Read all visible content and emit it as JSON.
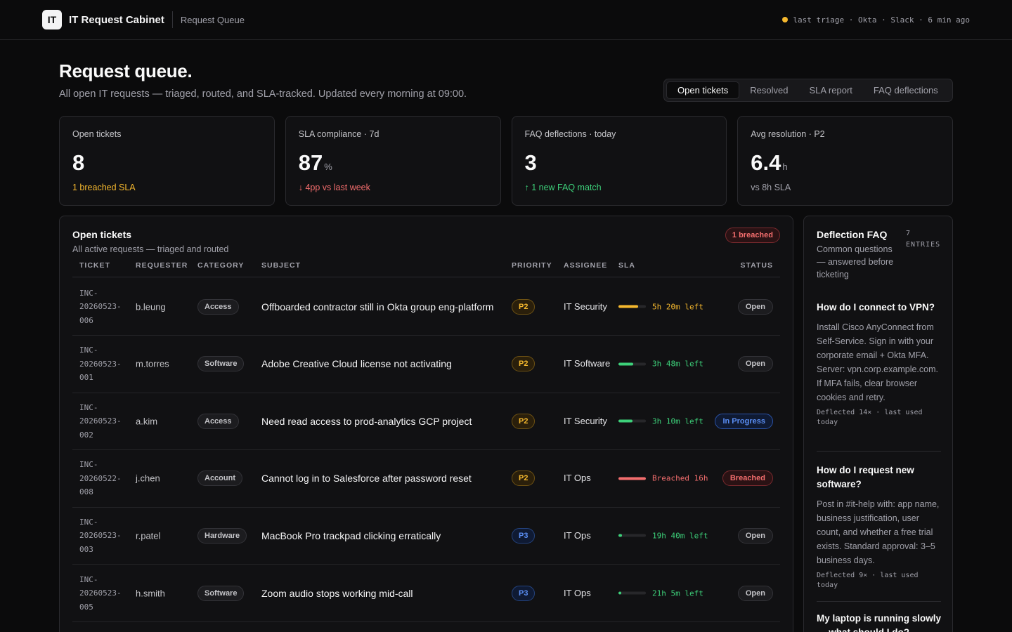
{
  "header": {
    "logo_text": "IT",
    "app_title": "IT Request Cabinet",
    "breadcrumb": "Request Queue",
    "triage_status": "last triage · Okta · Slack · 6 min ago"
  },
  "page": {
    "title": "Request queue.",
    "subtitle": "All open IT requests — triaged, routed, and SLA-tracked. Updated every morning at 09:00."
  },
  "tabs": [
    {
      "label": "Open tickets",
      "active": true
    },
    {
      "label": "Resolved",
      "active": false
    },
    {
      "label": "SLA report",
      "active": false
    },
    {
      "label": "FAQ deflections",
      "active": false
    }
  ],
  "stats": [
    {
      "label": "Open tickets",
      "value": "8",
      "unit": "",
      "note": "1 breached SLA"
    },
    {
      "label": "SLA compliance · 7d",
      "value": "87",
      "unit": "%",
      "note": "↓ 4pp vs last week"
    },
    {
      "label": "FAQ deflections · today",
      "value": "3",
      "unit": "",
      "note": "↑ 1 new FAQ match"
    },
    {
      "label": "Avg resolution · P2",
      "value": "6.4",
      "unit": "h",
      "note": "vs 8h SLA"
    }
  ],
  "colors": {
    "amber": "#f5b82e",
    "red": "#f26d6d",
    "green": "#3dd17a",
    "blue": "#5b8ff5"
  },
  "tickets_panel": {
    "title": "Open tickets",
    "subtitle": "All active requests — triaged and routed",
    "badge": "1 breached",
    "columns": [
      "TICKET",
      "REQUESTER",
      "CATEGORY",
      "SUBJECT",
      "PRIORITY",
      "ASSIGNEE",
      "SLA",
      "STATUS"
    ],
    "rows": [
      {
        "ticket": "INC-20260523-006",
        "requester": "b.leung",
        "category": "Access",
        "subject": "Offboarded contractor still in Okta group eng-platform",
        "priority": "P2",
        "assignee": "IT Security",
        "sla_text": "5h 20m left",
        "sla_fraction": 0.72,
        "sla_color": "#f5b82e",
        "status": "Open"
      },
      {
        "ticket": "INC-20260523-001",
        "requester": "m.torres",
        "category": "Software",
        "subject": "Adobe Creative Cloud license not activating",
        "priority": "P2",
        "assignee": "IT Software",
        "sla_text": "3h 48m left",
        "sla_fraction": 0.55,
        "sla_color": "#3dd17a",
        "status": "Open"
      },
      {
        "ticket": "INC-20260523-002",
        "requester": "a.kim",
        "category": "Access",
        "subject": "Need read access to prod-analytics GCP project",
        "priority": "P2",
        "assignee": "IT Security",
        "sla_text": "3h 10m left",
        "sla_fraction": 0.5,
        "sla_color": "#3dd17a",
        "status": "In Progress"
      },
      {
        "ticket": "INC-20260522-008",
        "requester": "j.chen",
        "category": "Account",
        "subject": "Cannot log in to Salesforce after password reset",
        "priority": "P2",
        "assignee": "IT Ops",
        "sla_text": "Breached 16h",
        "sla_fraction": 1.0,
        "sla_color": "#f26d6d",
        "status": "Breached"
      },
      {
        "ticket": "INC-20260523-003",
        "requester": "r.patel",
        "category": "Hardware",
        "subject": "MacBook Pro trackpad clicking erratically",
        "priority": "P3",
        "assignee": "IT Ops",
        "sla_text": "19h 40m left",
        "sla_fraction": 0.12,
        "sla_color": "#3dd17a",
        "status": "Open"
      },
      {
        "ticket": "INC-20260523-005",
        "requester": "h.smith",
        "category": "Software",
        "subject": "Zoom audio stops working mid-call",
        "priority": "P3",
        "assignee": "IT Ops",
        "sla_text": "21h 5m left",
        "sla_fraction": 0.1,
        "sla_color": "#3dd17a",
        "status": "Open"
      }
    ]
  },
  "faq_panel": {
    "title": "Deflection FAQ",
    "subtitle": "Common questions — answered before ticketing",
    "count_number": "7",
    "count_label": "ENTRIES",
    "items": [
      {
        "question": "How do I connect to VPN?",
        "answer": "Install Cisco AnyConnect from Self-Service. Sign in with your corporate email + Okta MFA. Server: vpn.corp.example.com. If MFA fails, clear browser cookies and retry.",
        "meta": "Deflected 14× · last used today"
      },
      {
        "question": "How do I request new software?",
        "answer": "Post in #it-help with: app name, business justification, user count, and whether a free trial exists. Standard approval: 3–5 business days.",
        "meta": "Deflected 9× · last used today"
      },
      {
        "question": "My laptop is running slowly — what should I do?",
        "answer": "",
        "meta": ""
      }
    ]
  }
}
